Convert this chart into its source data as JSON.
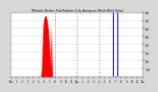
{
  "title": "Milwaukee Weather Solar Radiation & Day Average per Minute W/m2 (Today)",
  "bg_color": "#d8d8d8",
  "plot_bg_color": "#ffffff",
  "ylim": [
    0,
    800
  ],
  "yticks": [
    100,
    200,
    300,
    400,
    500,
    600,
    700,
    800
  ],
  "xlim": [
    0,
    1440
  ],
  "red_fill_color": "#ff0000",
  "blue_line_color": "#0000ff",
  "grid_color": "#999999",
  "solar_data": [
    0,
    0,
    0,
    0,
    0,
    0,
    0,
    0,
    0,
    0,
    0,
    0,
    0,
    0,
    0,
    0,
    0,
    0,
    0,
    0,
    0,
    0,
    0,
    0,
    0,
    0,
    0,
    0,
    0,
    0,
    0,
    0,
    0,
    0,
    0,
    0,
    0,
    0,
    0,
    0,
    0,
    0,
    0,
    0,
    0,
    0,
    0,
    0,
    0,
    0,
    0,
    0,
    0,
    0,
    0,
    0,
    0,
    0,
    0,
    0,
    0,
    0,
    0,
    0,
    0,
    0,
    0,
    0,
    0,
    0,
    0,
    0,
    0,
    0,
    0,
    0,
    0,
    0,
    0,
    0,
    0,
    0,
    0,
    0,
    0,
    0,
    0,
    0,
    0,
    0,
    0,
    0,
    0,
    0,
    0,
    0,
    0,
    0,
    0,
    0,
    0,
    0,
    0,
    0,
    0,
    0,
    0,
    0,
    0,
    0,
    0,
    0,
    0,
    0,
    0,
    0,
    0,
    0,
    0,
    0,
    0,
    0,
    0,
    0,
    0,
    0,
    0,
    0,
    0,
    0,
    0,
    0,
    0,
    0,
    0,
    0,
    0,
    0,
    0,
    0,
    0,
    0,
    0,
    0,
    0,
    0,
    0,
    0,
    0,
    0,
    0,
    0,
    0,
    0,
    0,
    0,
    0,
    0,
    0,
    0,
    0,
    0,
    0,
    0,
    0,
    0,
    0,
    0,
    0,
    0,
    0,
    0,
    0,
    0,
    0,
    0,
    0,
    0,
    0,
    0,
    0,
    0,
    0,
    0,
    0,
    0,
    0,
    0,
    0,
    0,
    0,
    0,
    0,
    0,
    0,
    0,
    0,
    0,
    0,
    0,
    0,
    0,
    0,
    0,
    0,
    0,
    0,
    0,
    0,
    0,
    0,
    0,
    0,
    0,
    0,
    0,
    0,
    0,
    0,
    0,
    0,
    0,
    0,
    0,
    0,
    0,
    0,
    0,
    0,
    0,
    0,
    0,
    0,
    0,
    0,
    0,
    0,
    0,
    0,
    0,
    0,
    0,
    0,
    0,
    0,
    0,
    0,
    0,
    0,
    0,
    0,
    0,
    0,
    0,
    0,
    0,
    0,
    0,
    0,
    0,
    0,
    0,
    0,
    0,
    0,
    0,
    0,
    0,
    0,
    0,
    0,
    0,
    0,
    0,
    0,
    0,
    0,
    0,
    0,
    0,
    0,
    0,
    0,
    0,
    0,
    0,
    0,
    0,
    0,
    0,
    0,
    0,
    0,
    0,
    0,
    0,
    0,
    0,
    0,
    0,
    0,
    0,
    0,
    0,
    0,
    0,
    0,
    0,
    0,
    0,
    0,
    0,
    0,
    0,
    0,
    0,
    0,
    0,
    0,
    0,
    2,
    4,
    6,
    10,
    15,
    20,
    28,
    38,
    50,
    65,
    80,
    100,
    120,
    145,
    170,
    200,
    230,
    265,
    300,
    335,
    370,
    400,
    435,
    470,
    500,
    530,
    558,
    582,
    605,
    625,
    642,
    658,
    670,
    680,
    690,
    698,
    704,
    710,
    715,
    720,
    725,
    730,
    735,
    738,
    740,
    742,
    744,
    746,
    748,
    750,
    752,
    754,
    756,
    757,
    758,
    758,
    758,
    757,
    756,
    754,
    752,
    750,
    747,
    744,
    740,
    736,
    732,
    728,
    723,
    718,
    712,
    706,
    700,
    693,
    686,
    679,
    671,
    663,
    655,
    646,
    637,
    628,
    618,
    608,
    597,
    586,
    574,
    562,
    550,
    537,
    523,
    509,
    495,
    480,
    464,
    448,
    431,
    413,
    395,
    376,
    357,
    337,
    317,
    296,
    274,
    252,
    229,
    205,
    180,
    155,
    128,
    100,
    570,
    620,
    610,
    590,
    570,
    545,
    520,
    492,
    463,
    432,
    400,
    367,
    333,
    298,
    262,
    225,
    187,
    148,
    108,
    67,
    30,
    10,
    4,
    1,
    0,
    0,
    0,
    0,
    0,
    0,
    0,
    0,
    0,
    0,
    0,
    0,
    0,
    0,
    0,
    0,
    0,
    0,
    0,
    0,
    0,
    0,
    0,
    0,
    0,
    0,
    0,
    0,
    0,
    0,
    0,
    0,
    0,
    0,
    0,
    0,
    0,
    0,
    0,
    0,
    0,
    0,
    0,
    0,
    0,
    0,
    0,
    0,
    0,
    0,
    0,
    0,
    0,
    0,
    0,
    0,
    0,
    0,
    0,
    0,
    0,
    0,
    0,
    0,
    0,
    0,
    0,
    0,
    0,
    0,
    0,
    0,
    0,
    0,
    0,
    0,
    0,
    0,
    0,
    0,
    0,
    0,
    0,
    0,
    0,
    0,
    0,
    0,
    0,
    0,
    0,
    0,
    0,
    0,
    0,
    0,
    0,
    0,
    0,
    0,
    0,
    0,
    0,
    0,
    0,
    0,
    0,
    0,
    0,
    0,
    0,
    0,
    0,
    0,
    0,
    0,
    0,
    0,
    0,
    0,
    0,
    0,
    0,
    0,
    0,
    0,
    0,
    0,
    0,
    0,
    0,
    0,
    0,
    0,
    0,
    0,
    0,
    0,
    0,
    0,
    0,
    0,
    0,
    0,
    0,
    0,
    0,
    0,
    0,
    0,
    0,
    0,
    0,
    0,
    0,
    0,
    0,
    0,
    0,
    0,
    0,
    0,
    0,
    0,
    0,
    0,
    0,
    0,
    0,
    0,
    0,
    0,
    0,
    0,
    0,
    0,
    0,
    0,
    0,
    0,
    0,
    0,
    0,
    0,
    0,
    0,
    0,
    0,
    0,
    0,
    0,
    0,
    0,
    0,
    0,
    0,
    0,
    0,
    0,
    0,
    0,
    0,
    0,
    0,
    0,
    0,
    0,
    0,
    0,
    0,
    0,
    0,
    0,
    0,
    0,
    0,
    0,
    0,
    0,
    0,
    0,
    0,
    0,
    0,
    0,
    0,
    0,
    0,
    0,
    0,
    0,
    0,
    0,
    0,
    0,
    0,
    0,
    0,
    0,
    0,
    0,
    0,
    0,
    0,
    0,
    0,
    0,
    0,
    0,
    0,
    0,
    0,
    0,
    0,
    0,
    0,
    0,
    0,
    0,
    0,
    0,
    0,
    0,
    0,
    0,
    0,
    0,
    0,
    0,
    0,
    0,
    0,
    0,
    0,
    0,
    0,
    0,
    0,
    0,
    0,
    0,
    0,
    0,
    0,
    0,
    0,
    0,
    0,
    0,
    0,
    0,
    0,
    0,
    0,
    0,
    0,
    0,
    0,
    0,
    0,
    0,
    0,
    0,
    0,
    0,
    0,
    0,
    0,
    0,
    0,
    0,
    0,
    0,
    0,
    0,
    0,
    0,
    0,
    0,
    0,
    0,
    0,
    0,
    0,
    0,
    0
  ],
  "blue_vlines": [
    1110,
    1155
  ],
  "dashed_vlines": [
    480,
    720,
    960
  ],
  "xtick_labels": [
    "12a",
    "1",
    "2",
    "3",
    "4",
    "5",
    "6",
    "7",
    "8",
    "9",
    "10",
    "11",
    "12p",
    "1",
    "2",
    "3",
    "4",
    "5",
    "6",
    "7",
    "8",
    "9",
    "10",
    "11",
    "12a"
  ],
  "xtick_positions": [
    0,
    60,
    120,
    180,
    240,
    300,
    360,
    420,
    480,
    540,
    600,
    660,
    720,
    780,
    840,
    900,
    960,
    1020,
    1080,
    1140,
    1200,
    1260,
    1320,
    1380,
    1440
  ]
}
